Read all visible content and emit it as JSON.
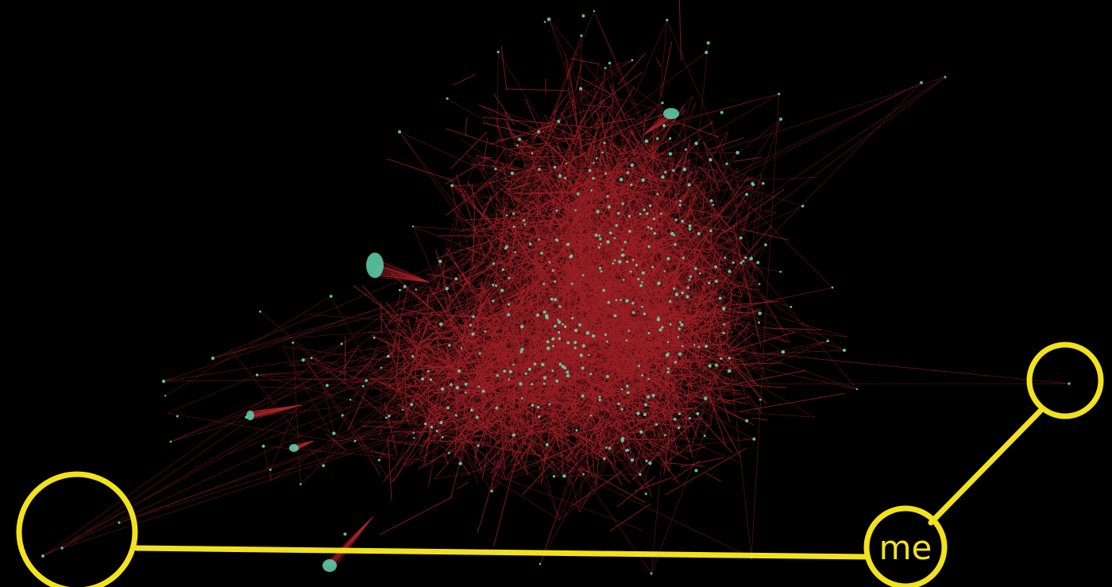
{
  "annotation": {
    "me_label": "me",
    "highlight_color": "#f2e21b"
  },
  "graph": {
    "edge_color": "#b0232a",
    "node_color": "#5fd6b0",
    "background": "#000000"
  }
}
